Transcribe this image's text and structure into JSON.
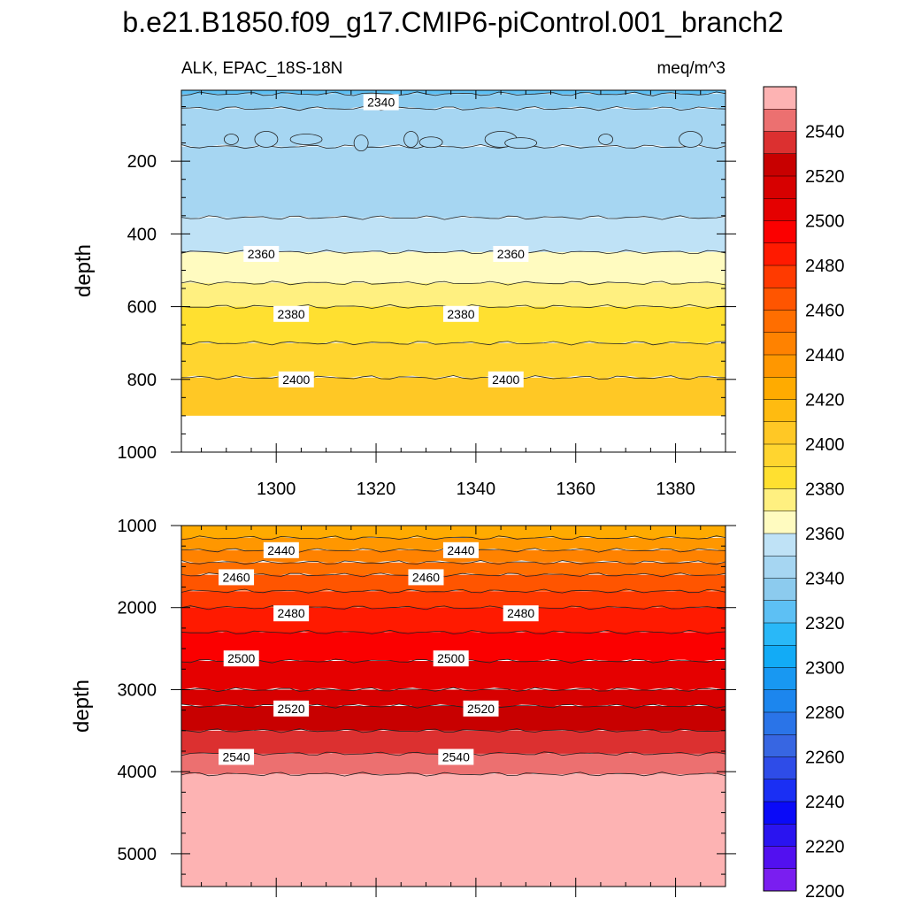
{
  "title": "b.e21.B1850.f09_g17.CMIP6-piControl.001_branch2",
  "chart_data": [
    {
      "type": "contour",
      "panel": "upper",
      "subtitle_left": "ALK, EPAC_18S-18N",
      "subtitle_right": "meq/m^3",
      "ylabel": "depth",
      "xlabel": "",
      "x_ticks": [
        "1300",
        "1320",
        "1340",
        "1360",
        "1380"
      ],
      "y_ticks": [
        "200",
        "400",
        "600",
        "800",
        "1000"
      ],
      "xlim": [
        1281,
        1390
      ],
      "ylim": [
        1000,
        5
      ],
      "contour_levels": [
        {
          "depth": 15,
          "value": 2330
        },
        {
          "depth": 55,
          "value": 2340
        },
        {
          "depth": 160,
          "value": 2350
        },
        {
          "depth": 355,
          "value": 2350
        },
        {
          "depth": 450,
          "value": 2360
        },
        {
          "depth": 535,
          "value": 2370
        },
        {
          "depth": 600,
          "value": 2380
        },
        {
          "depth": 700,
          "value": 2390
        },
        {
          "depth": 795,
          "value": 2400
        },
        {
          "depth": 900,
          "value": 2410
        }
      ],
      "contour_labels": [
        {
          "text": "2340",
          "x": 1321,
          "depth": 38
        },
        {
          "text": "2360",
          "x": 1297,
          "depth": 455
        },
        {
          "text": "2360",
          "x": 1347,
          "depth": 455
        },
        {
          "text": "2380",
          "x": 1303,
          "depth": 620
        },
        {
          "text": "2380",
          "x": 1337,
          "depth": 620
        },
        {
          "text": "2400",
          "x": 1304,
          "depth": 800
        },
        {
          "text": "2400",
          "x": 1346,
          "depth": 800
        }
      ]
    },
    {
      "type": "contour",
      "panel": "lower",
      "ylabel": "depth",
      "xlabel": "",
      "x_ticks": [
        "",
        "",
        "",
        "",
        ""
      ],
      "y_ticks": [
        "1000",
        "2000",
        "3000",
        "4000",
        "5000"
      ],
      "xlim": [
        1281,
        1390
      ],
      "ylim": [
        5400,
        1000
      ],
      "contour_levels": [
        {
          "depth": 1150,
          "value": 2430
        },
        {
          "depth": 1300,
          "value": 2440
        },
        {
          "depth": 1450,
          "value": 2450
        },
        {
          "depth": 1600,
          "value": 2460
        },
        {
          "depth": 1800,
          "value": 2470
        },
        {
          "depth": 2000,
          "value": 2480
        },
        {
          "depth": 2300,
          "value": 2490
        },
        {
          "depth": 2650,
          "value": 2500
        },
        {
          "depth": 3000,
          "value": 2510
        },
        {
          "depth": 3200,
          "value": 2520
        },
        {
          "depth": 3500,
          "value": 2530
        },
        {
          "depth": 3780,
          "value": 2540
        },
        {
          "depth": 4030,
          "value": 2550
        },
        {
          "depth": 5400,
          "value": 2560
        }
      ],
      "contour_labels": [
        {
          "text": "2440",
          "x": 1301,
          "depth": 1300
        },
        {
          "text": "2440",
          "x": 1337,
          "depth": 1300
        },
        {
          "text": "2460",
          "x": 1292,
          "depth": 1630
        },
        {
          "text": "2460",
          "x": 1330,
          "depth": 1630
        },
        {
          "text": "2480",
          "x": 1303,
          "depth": 2070
        },
        {
          "text": "2480",
          "x": 1349,
          "depth": 2070
        },
        {
          "text": "2500",
          "x": 1293,
          "depth": 2620
        },
        {
          "text": "2500",
          "x": 1335,
          "depth": 2620
        },
        {
          "text": "2520",
          "x": 1303,
          "depth": 3230
        },
        {
          "text": "2520",
          "x": 1341,
          "depth": 3230
        },
        {
          "text": "2540",
          "x": 1292,
          "depth": 3820
        },
        {
          "text": "2540",
          "x": 1336,
          "depth": 3820
        }
      ]
    }
  ],
  "colorbar": {
    "labels": [
      "2540",
      "2520",
      "2500",
      "2480",
      "2460",
      "2440",
      "2420",
      "2400",
      "2380",
      "2360",
      "2340",
      "2320",
      "2300",
      "2280",
      "2260",
      "2240",
      "2220",
      "2200"
    ],
    "colors": [
      "#fdb3b3",
      "#ec7070",
      "#dc3030",
      "#c80000",
      "#d70000",
      "#e50000",
      "#fb0000",
      "#ff1a00",
      "#ff3a00",
      "#ff5500",
      "#ff6e00",
      "#ff8200",
      "#ff9700",
      "#ffab00",
      "#ffbb10",
      "#ffc825",
      "#ffd52f",
      "#ffe030",
      "#fff080",
      "#fffbc0",
      "#bfe2f6",
      "#a6d6f2",
      "#8ccbee",
      "#5dc0f4",
      "#29b8f8",
      "#12abf6",
      "#1898f2",
      "#1c86ee",
      "#2a74e8",
      "#3766e2",
      "#2e4ce8",
      "#1a2ff4",
      "#0a0af8",
      "#2a14f0",
      "#5210f0",
      "#7a1ef0"
    ]
  }
}
